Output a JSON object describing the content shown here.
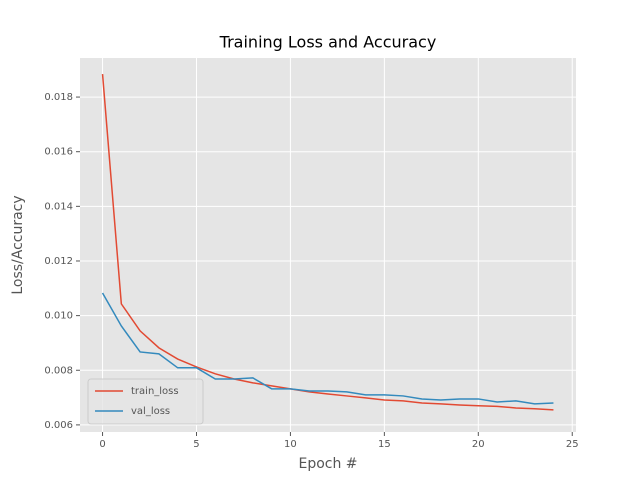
{
  "chart_data": {
    "type": "line",
    "title": "Training Loss and Accuracy",
    "x_label": "Epoch #",
    "y_label": "Loss/Accuracy",
    "x": [
      0,
      1,
      2,
      3,
      4,
      5,
      6,
      7,
      8,
      9,
      10,
      11,
      12,
      13,
      14,
      15,
      16,
      17,
      18,
      19,
      20,
      21,
      22,
      23,
      24
    ],
    "series": [
      {
        "name": "train_loss",
        "color": "#E24A33",
        "values": [
          0.01884,
          0.01043,
          0.00944,
          0.00882,
          0.00841,
          0.00812,
          0.00787,
          0.00768,
          0.00754,
          0.00743,
          0.00732,
          0.00721,
          0.00713,
          0.00706,
          0.00699,
          0.00691,
          0.00688,
          0.0068,
          0.00677,
          0.00673,
          0.0067,
          0.00668,
          0.00662,
          0.00659,
          0.00655
        ]
      },
      {
        "name": "val_loss",
        "color": "#348ABD",
        "values": [
          0.01083,
          0.00962,
          0.00867,
          0.0086,
          0.00809,
          0.00809,
          0.00768,
          0.00768,
          0.00772,
          0.00732,
          0.00732,
          0.00724,
          0.00724,
          0.00721,
          0.0071,
          0.0071,
          0.00706,
          0.00695,
          0.00691,
          0.00695,
          0.00695,
          0.00684,
          0.00688,
          0.00677,
          0.0068
        ]
      }
    ],
    "xlim": [
      -1.2,
      25.2
    ],
    "xticks": [
      0,
      5,
      10,
      15,
      20,
      25
    ],
    "ylim": [
      0.00574,
      0.01943
    ],
    "yticks": [
      0.006,
      0.008,
      {
        "value": 0.01,
        "label": "0.010"
      },
      0.012,
      0.014,
      0.016,
      0.018
    ],
    "grid": true,
    "legend": "lower left"
  }
}
